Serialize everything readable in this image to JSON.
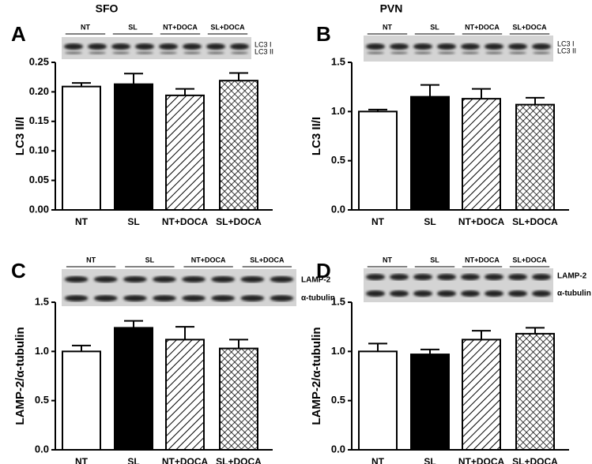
{
  "chart_data": [
    {
      "type": "bar",
      "panel": "A",
      "title": "SFO",
      "ylabel": "LC3 II/I",
      "categories": [
        "NT",
        "SL",
        "NT+DOCA",
        "SL+DOCA"
      ],
      "values": [
        0.209,
        0.213,
        0.194,
        0.219
      ],
      "errors": [
        0.006,
        0.018,
        0.011,
        0.013
      ],
      "bar_fills": [
        "#ffffff",
        "#000000",
        "diagonal-hatch",
        "cross-hatch"
      ],
      "ylim": [
        0,
        0.25
      ],
      "yticks": [
        {
          "value": 0,
          "label": "0.00"
        },
        0.05,
        {
          "value": 0.1,
          "label": "0.10"
        },
        0.15,
        {
          "value": 0.2,
          "label": "0.20"
        },
        0.25
      ],
      "blot": {
        "groups": [
          "NT",
          "SL",
          "NT+DOCA",
          "SL+DOCA"
        ],
        "bands": [
          "LC3 I",
          "LC3 II"
        ]
      }
    },
    {
      "type": "bar",
      "panel": "B",
      "title": "PVN",
      "ylabel": "LC3 II/I",
      "categories": [
        "NT",
        "SL",
        "NT+DOCA",
        "SL+DOCA"
      ],
      "values": [
        1.0,
        1.15,
        1.13,
        1.07
      ],
      "errors": [
        0.02,
        0.12,
        0.1,
        0.07
      ],
      "bar_fills": [
        "#ffffff",
        "#000000",
        "diagonal-hatch",
        "cross-hatch"
      ],
      "ylim": [
        0,
        1.5
      ],
      "yticks": [
        {
          "value": 0,
          "label": "0.0"
        },
        0.5,
        {
          "value": 1,
          "label": "1.0"
        },
        1.5
      ],
      "blot": {
        "groups": [
          "NT",
          "SL",
          "NT+DOCA",
          "SL+DOCA"
        ],
        "bands": [
          "LC3 I",
          "LC3 II"
        ]
      }
    },
    {
      "type": "bar",
      "panel": "C",
      "ylabel": "LAMP-2/α-tubulin",
      "categories": [
        "NT",
        "SL",
        "NT+DOCA",
        "SL+DOCA"
      ],
      "values": [
        1.0,
        1.24,
        1.12,
        1.03
      ],
      "errors": [
        0.06,
        0.07,
        0.13,
        0.09
      ],
      "bar_fills": [
        "#ffffff",
        "#000000",
        "diagonal-hatch",
        "cross-hatch"
      ],
      "ylim": [
        0,
        1.5
      ],
      "yticks": [
        {
          "value": 0,
          "label": "0.0"
        },
        0.5,
        {
          "value": 1,
          "label": "1.0"
        },
        1.5
      ],
      "blot": {
        "groups": [
          "NT",
          "SL",
          "NT+DOCA",
          "SL+DOCA"
        ],
        "bands": [
          "LAMP-2",
          "α-tubulin"
        ]
      }
    },
    {
      "type": "bar",
      "panel": "D",
      "ylabel": "LAMP-2/α-tubulin",
      "categories": [
        "NT",
        "SL",
        "NT+DOCA",
        "SL+DOCA"
      ],
      "values": [
        1.0,
        0.97,
        1.12,
        1.18
      ],
      "errors": [
        0.08,
        0.05,
        0.09,
        0.06
      ],
      "bar_fills": [
        "#ffffff",
        "#000000",
        "diagonal-hatch",
        "cross-hatch"
      ],
      "ylim": [
        0,
        1.5
      ],
      "yticks": [
        {
          "value": 0,
          "label": "0.0"
        },
        0.5,
        {
          "value": 1,
          "label": "1.0"
        },
        1.5
      ],
      "blot": {
        "groups": [
          "NT",
          "SL",
          "NT+DOCA",
          "SL+DOCA"
        ],
        "bands": [
          "LAMP-2",
          "α-tubulin"
        ]
      }
    }
  ]
}
